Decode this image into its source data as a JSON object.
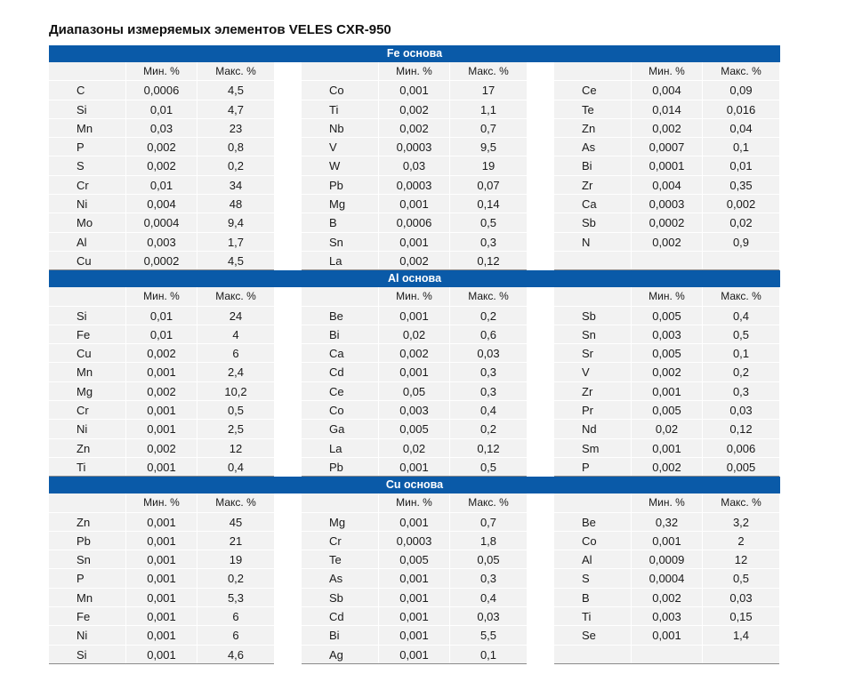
{
  "title": "Диапазоны измеряемых элементов VELES CXR-950",
  "col_headers": {
    "min": "Мин. %",
    "max": "Макс. %"
  },
  "sections": [
    {
      "name": "Fe основа",
      "groups": [
        [
          [
            "C",
            "0,0006",
            "4,5"
          ],
          [
            "Si",
            "0,01",
            "4,7"
          ],
          [
            "Mn",
            "0,03",
            "23"
          ],
          [
            "P",
            "0,002",
            "0,8"
          ],
          [
            "S",
            "0,002",
            "0,2"
          ],
          [
            "Cr",
            "0,01",
            "34"
          ],
          [
            "Ni",
            "0,004",
            "48"
          ],
          [
            "Mo",
            "0,0004",
            "9,4"
          ],
          [
            "Al",
            "0,003",
            "1,7"
          ],
          [
            "Cu",
            "0,0002",
            "4,5"
          ]
        ],
        [
          [
            "Co",
            "0,001",
            "17"
          ],
          [
            "Ti",
            "0,002",
            "1,1"
          ],
          [
            "Nb",
            "0,002",
            "0,7"
          ],
          [
            "V",
            "0,0003",
            "9,5"
          ],
          [
            "W",
            "0,03",
            "19"
          ],
          [
            "Pb",
            "0,0003",
            "0,07"
          ],
          [
            "Mg",
            "0,001",
            "0,14"
          ],
          [
            "B",
            "0,0006",
            "0,5"
          ],
          [
            "Sn",
            "0,001",
            "0,3"
          ],
          [
            "La",
            "0,002",
            "0,12"
          ]
        ],
        [
          [
            "Ce",
            "0,004",
            "0,09"
          ],
          [
            "Te",
            "0,014",
            "0,016"
          ],
          [
            "Zn",
            "0,002",
            "0,04"
          ],
          [
            "As",
            "0,0007",
            "0,1"
          ],
          [
            "Bi",
            "0,0001",
            "0,01"
          ],
          [
            "Zr",
            "0,004",
            "0,35"
          ],
          [
            "Ca",
            "0,0003",
            "0,002"
          ],
          [
            "Sb",
            "0,0002",
            "0,02"
          ],
          [
            "N",
            "0,002",
            "0,9"
          ],
          [
            "",
            "",
            ""
          ]
        ]
      ]
    },
    {
      "name": "Al основа",
      "groups": [
        [
          [
            "Si",
            "0,01",
            "24"
          ],
          [
            "Fe",
            "0,01",
            "4"
          ],
          [
            "Cu",
            "0,002",
            "6"
          ],
          [
            "Mn",
            "0,001",
            "2,4"
          ],
          [
            "Mg",
            "0,002",
            "10,2"
          ],
          [
            "Cr",
            "0,001",
            "0,5"
          ],
          [
            "Ni",
            "0,001",
            "2,5"
          ],
          [
            "Zn",
            "0,002",
            "12"
          ],
          [
            "Ti",
            "0,001",
            "0,4"
          ]
        ],
        [
          [
            "Be",
            "0,001",
            "0,2"
          ],
          [
            "Bi",
            "0,02",
            "0,6"
          ],
          [
            "Ca",
            "0,002",
            "0,03"
          ],
          [
            "Cd",
            "0,001",
            "0,3"
          ],
          [
            "Ce",
            "0,05",
            "0,3"
          ],
          [
            "Co",
            "0,003",
            "0,4"
          ],
          [
            "Ga",
            "0,005",
            "0,2"
          ],
          [
            "La",
            "0,02",
            "0,12"
          ],
          [
            "Pb",
            "0,001",
            "0,5"
          ]
        ],
        [
          [
            "Sb",
            "0,005",
            "0,4"
          ],
          [
            "Sn",
            "0,003",
            "0,5"
          ],
          [
            "Sr",
            "0,005",
            "0,1"
          ],
          [
            "V",
            "0,002",
            "0,2"
          ],
          [
            "Zr",
            "0,001",
            "0,3"
          ],
          [
            "Pr",
            "0,005",
            "0,03"
          ],
          [
            "Nd",
            "0,02",
            "0,12"
          ],
          [
            "Sm",
            "0,001",
            "0,006"
          ],
          [
            "P",
            "0,002",
            "0,005"
          ]
        ]
      ]
    },
    {
      "name": "Cu основа",
      "groups": [
        [
          [
            "Zn",
            "0,001",
            "45"
          ],
          [
            "Pb",
            "0,001",
            "21"
          ],
          [
            "Sn",
            "0,001",
            "19"
          ],
          [
            "P",
            "0,001",
            "0,2"
          ],
          [
            "Mn",
            "0,001",
            "5,3"
          ],
          [
            "Fe",
            "0,001",
            "6"
          ],
          [
            "Ni",
            "0,001",
            "6"
          ],
          [
            "Si",
            "0,001",
            "4,6"
          ]
        ],
        [
          [
            "Mg",
            "0,001",
            "0,7"
          ],
          [
            "Cr",
            "0,0003",
            "1,8"
          ],
          [
            "Te",
            "0,005",
            "0,05"
          ],
          [
            "As",
            "0,001",
            "0,3"
          ],
          [
            "Sb",
            "0,001",
            "0,4"
          ],
          [
            "Cd",
            "0,001",
            "0,03"
          ],
          [
            "Bi",
            "0,001",
            "5,5"
          ],
          [
            "Ag",
            "0,001",
            "0,1"
          ]
        ],
        [
          [
            "Be",
            "0,32",
            "3,2"
          ],
          [
            "Co",
            "0,001",
            "2"
          ],
          [
            "Al",
            "0,0009",
            "12"
          ],
          [
            "S",
            "0,0004",
            "0,5"
          ],
          [
            "B",
            "0,002",
            "0,03"
          ],
          [
            "Ti",
            "0,003",
            "0,15"
          ],
          [
            "Se",
            "0,001",
            "1,4"
          ],
          [
            "",
            "",
            ""
          ]
        ]
      ]
    }
  ]
}
